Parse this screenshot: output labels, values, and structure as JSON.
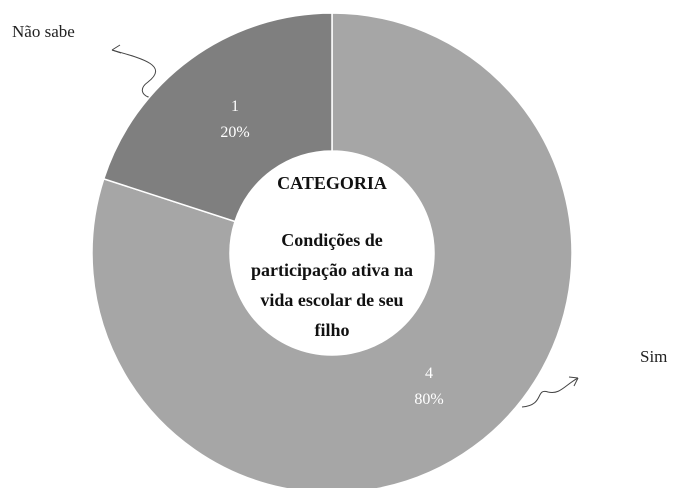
{
  "chart_data": {
    "type": "donut",
    "categories": [
      "Sim",
      "Não sabe"
    ],
    "values": [
      4,
      1
    ],
    "percentages": [
      80,
      20
    ],
    "percentage_labels": [
      "80%",
      "20%"
    ],
    "colors": [
      "#a6a6a6",
      "#7f7f7f"
    ],
    "center_title": "CATEGORIA",
    "center_text": [
      "Condições de",
      "participação ativa na",
      "vida escolar de seu",
      "filho"
    ]
  }
}
